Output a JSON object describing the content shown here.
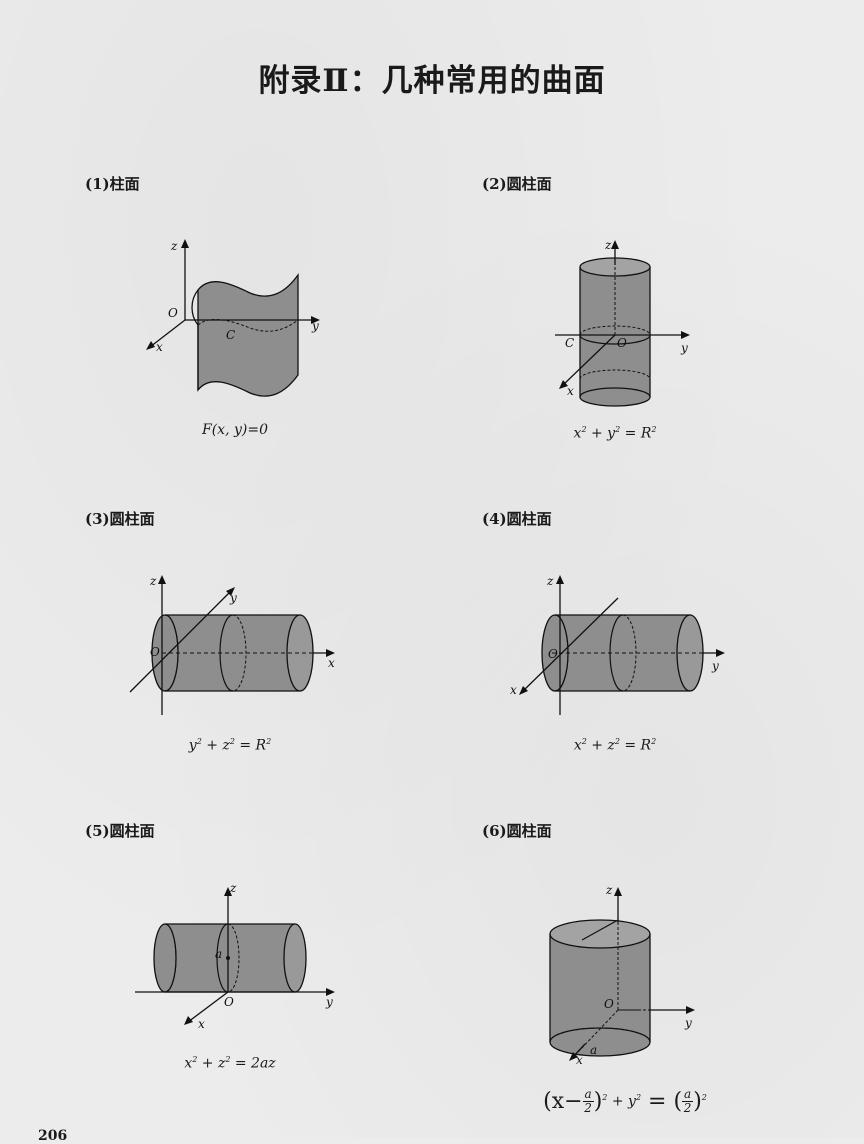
{
  "title": "附录Ⅱ：几种常用的曲面",
  "figures": [
    {
      "caption": "(1)柱面",
      "formula": "F(x, y)=0",
      "labels": {
        "z": "z",
        "y": "y",
        "x": "x",
        "origin": "O",
        "curve": "C"
      }
    },
    {
      "caption": "(2)圆柱面",
      "formula_parts": [
        "x",
        "2",
        " + y",
        "2",
        " = R",
        "2"
      ],
      "labels": {
        "z": "z",
        "y": "y",
        "x": "x",
        "origin": "O",
        "curve": "C"
      }
    },
    {
      "caption": "(3)圆柱面",
      "formula_parts": [
        "y",
        "2",
        " + z",
        "2",
        " = R",
        "2"
      ],
      "labels": {
        "z": "z",
        "y": "y",
        "x": "x",
        "origin": "O"
      }
    },
    {
      "caption": "(4)圆柱面",
      "formula_parts": [
        "x",
        "2",
        " + z",
        "2",
        " = R",
        "2"
      ],
      "labels": {
        "z": "z",
        "y": "y",
        "x": "x",
        "origin": "O"
      }
    },
    {
      "caption": "(5)圆柱面",
      "formula_parts": [
        "x",
        "2",
        " + z",
        "2",
        " = 2az"
      ],
      "labels": {
        "z": "z",
        "y": "y",
        "x": "x",
        "origin": "O",
        "a": "a"
      }
    },
    {
      "caption": "(6)圆柱面",
      "formula_parts": {
        "open": "(x−",
        "num": "a",
        "den": "2",
        "mid": ")",
        "sq1": "2",
        "plus": " + y",
        "sq2": "2",
        "eq": " = (",
        "num2": "a",
        "den2": "2",
        "close": ")",
        "sq3": "2"
      },
      "labels": {
        "z": "z",
        "y": "y",
        "x": "x",
        "origin": "O",
        "a": "a"
      }
    }
  ],
  "page_number": "206",
  "colors": {
    "surface": "#8e8e8e",
    "surface_dark": "#7a7a7a",
    "line": "#111111"
  }
}
